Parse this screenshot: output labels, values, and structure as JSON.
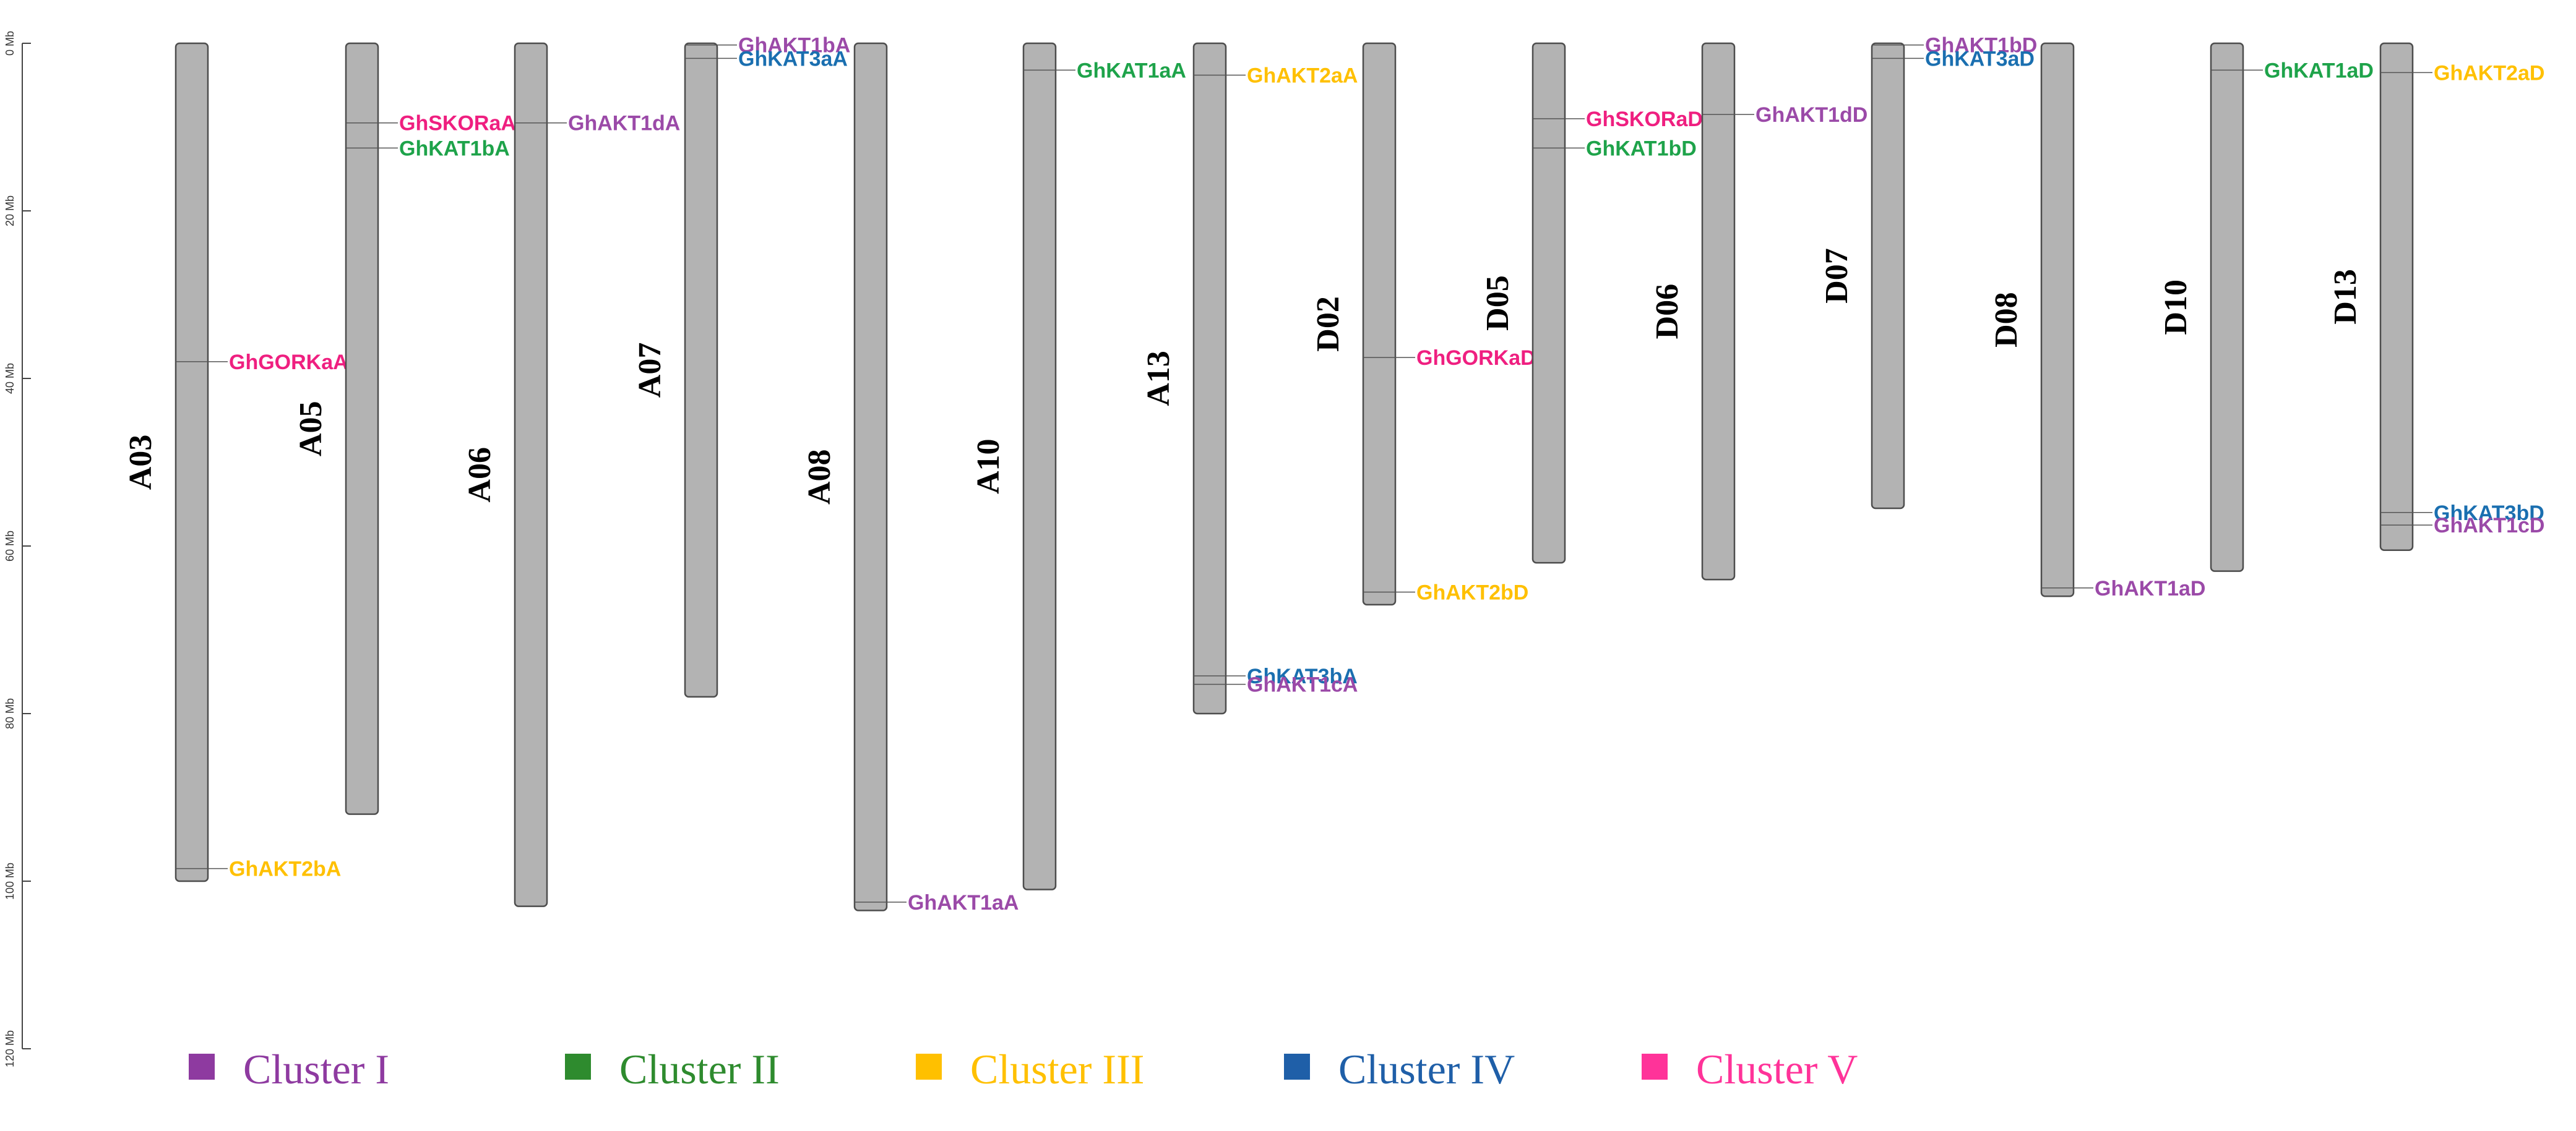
{
  "axis": {
    "unit": "Mb",
    "range": [
      0,
      120
    ],
    "ticks": [
      "0 Mb",
      "20 Mb",
      "40 Mb",
      "60 Mb",
      "80 Mb",
      "100 Mb",
      "120 Mb"
    ]
  },
  "clusters": [
    {
      "id": "I",
      "label": "Cluster I",
      "color": "#8e3aa0"
    },
    {
      "id": "II",
      "label": "Cluster II",
      "color": "#2e8b2e"
    },
    {
      "id": "III",
      "label": "Cluster III",
      "color": "#ffc000"
    },
    {
      "id": "IV",
      "label": "Cluster IV",
      "color": "#1f5fa8"
    },
    {
      "id": "V",
      "label": "Cluster V",
      "color": "#ff3399"
    }
  ],
  "gene_colors": {
    "I": "#9b4aa8",
    "II": "#1ea34a",
    "III": "#ffc000",
    "IV": "#1a6fb0",
    "V": "#ef1f80"
  },
  "chromosomes": [
    {
      "name": "A03",
      "length": 100,
      "genes": [
        {
          "name": "GhGORKaA",
          "pos": 38,
          "cluster": "V"
        },
        {
          "name": "GhAKT2bA",
          "pos": 98.5,
          "cluster": "III"
        }
      ]
    },
    {
      "name": "A05",
      "length": 92,
      "genes": [
        {
          "name": "GhSKORaA",
          "pos": 9.5,
          "cluster": "V"
        },
        {
          "name": "GhKAT1bA",
          "pos": 12.5,
          "cluster": "II"
        }
      ]
    },
    {
      "name": "A06",
      "length": 103,
      "genes": [
        {
          "name": "GhAKT1dA",
          "pos": 9.5,
          "cluster": "I"
        }
      ]
    },
    {
      "name": "A07",
      "length": 78,
      "genes": [
        {
          "name": "GhAKT1bA",
          "pos": 0.2,
          "cluster": "I"
        },
        {
          "name": "GhKAT3aA",
          "pos": 1.8,
          "cluster": "IV"
        }
      ]
    },
    {
      "name": "A08",
      "length": 103.5,
      "genes": [
        {
          "name": "GhAKT1aA",
          "pos": 102.5,
          "cluster": "I"
        }
      ]
    },
    {
      "name": "A10",
      "length": 101,
      "genes": [
        {
          "name": "GhKAT1aA",
          "pos": 3.2,
          "cluster": "II"
        }
      ]
    },
    {
      "name": "A13",
      "length": 80,
      "genes": [
        {
          "name": "GhAKT2aA",
          "pos": 3.8,
          "cluster": "III"
        },
        {
          "name": "GhKAT3bA",
          "pos": 75.5,
          "cluster": "IV"
        },
        {
          "name": "GhAKT1cA",
          "pos": 76.5,
          "cluster": "I"
        }
      ]
    },
    {
      "name": "D02",
      "length": 67,
      "genes": [
        {
          "name": "GhGORKaD",
          "pos": 37.5,
          "cluster": "V"
        },
        {
          "name": "GhAKT2bD",
          "pos": 65.5,
          "cluster": "III"
        }
      ]
    },
    {
      "name": "D05",
      "length": 62,
      "genes": [
        {
          "name": "GhSKORaD",
          "pos": 9,
          "cluster": "V"
        },
        {
          "name": "GhKAT1bD",
          "pos": 12.5,
          "cluster": "II"
        }
      ]
    },
    {
      "name": "D06",
      "length": 64,
      "genes": [
        {
          "name": "GhAKT1dD",
          "pos": 8.5,
          "cluster": "I"
        }
      ]
    },
    {
      "name": "D07",
      "length": 55.5,
      "genes": [
        {
          "name": "GhAKT1bD",
          "pos": 0.2,
          "cluster": "I"
        },
        {
          "name": "GhKAT3aD",
          "pos": 1.8,
          "cluster": "IV"
        }
      ]
    },
    {
      "name": "D08",
      "length": 66,
      "genes": [
        {
          "name": "GhAKT1aD",
          "pos": 65,
          "cluster": "I"
        }
      ]
    },
    {
      "name": "D10",
      "length": 63,
      "genes": [
        {
          "name": "GhKAT1aD",
          "pos": 3.2,
          "cluster": "II"
        }
      ]
    },
    {
      "name": "D13",
      "length": 60.5,
      "genes": [
        {
          "name": "GhAKT2aD",
          "pos": 3.5,
          "cluster": "III"
        },
        {
          "name": "GhKAT3bD",
          "pos": 56,
          "cluster": "IV"
        },
        {
          "name": "GhAKT1cD",
          "pos": 57.5,
          "cluster": "I"
        }
      ]
    }
  ]
}
